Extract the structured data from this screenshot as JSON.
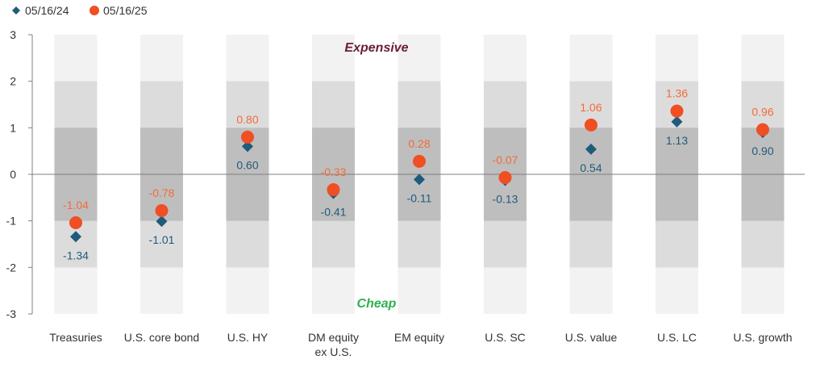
{
  "chart_data": {
    "type": "scatter",
    "categories": [
      "Treasuries",
      "U.S. core bond",
      "U.S. HY",
      "DM equity\nex U.S.",
      "EM equity",
      "U.S. SC",
      "U.S. value",
      "U.S. LC",
      "U.S. growth"
    ],
    "series": [
      {
        "name": "05/16/24",
        "marker": "diamond",
        "color": "#1f5b7a",
        "label_color": "#1f5b7a",
        "values": [
          -1.34,
          -1.01,
          0.6,
          -0.41,
          -0.11,
          -0.13,
          0.54,
          1.13,
          0.9
        ],
        "labels": [
          "-1.34",
          "-1.01",
          "0.60",
          "-0.41",
          "-0.11",
          "-0.13",
          "0.54",
          "1.13",
          "0.90"
        ]
      },
      {
        "name": "05/16/25",
        "marker": "circle",
        "color": "#f04e23",
        "label_color": "#f26b3a",
        "values": [
          -1.04,
          -0.78,
          0.8,
          -0.33,
          0.28,
          -0.07,
          1.06,
          1.36,
          0.96
        ],
        "labels": [
          "-1.04",
          "-0.78",
          "0.80",
          "-0.33",
          "0.28",
          "-0.07",
          "1.06",
          "1.36",
          "0.96"
        ]
      }
    ],
    "ylim": [
      -3,
      3
    ],
    "yticks": [
      3,
      2,
      1,
      0,
      -1,
      -2,
      -3
    ],
    "annotations": {
      "top": "Expensive",
      "bottom": "Cheap"
    },
    "annotation_colors": {
      "top": "#6b1d3e",
      "bottom": "#2bb24c"
    },
    "band_colors": {
      "outer": "#f2f2f2",
      "middle": "#dddcdc",
      "inner": "#bfbebe"
    },
    "legend": "top-left",
    "xlabel": "",
    "ylabel": ""
  }
}
